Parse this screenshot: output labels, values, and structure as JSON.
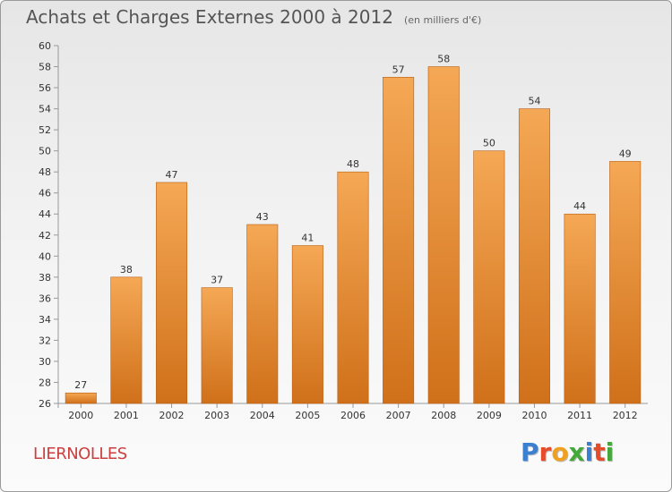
{
  "title": {
    "main": "Achats et Charges Externes 2000 à 2012",
    "sub": "(en milliers d'€)"
  },
  "place": "LIERNOLLES",
  "logo": {
    "letters": [
      "P",
      "r",
      "o",
      "x",
      "i",
      "t",
      "i"
    ],
    "colors": [
      "#3a7fd0",
      "#e64b2a",
      "#f0a020",
      "#44a83a",
      "#3a7fd0",
      "#e64b2a",
      "#44a83a"
    ]
  },
  "colors": {
    "bar_top": "#f5a855",
    "bar_bottom": "#d0701a",
    "bar_edge": "#b85e12"
  },
  "chart_data": {
    "type": "bar",
    "categories": [
      "2000",
      "2001",
      "2002",
      "2003",
      "2004",
      "2005",
      "2006",
      "2007",
      "2008",
      "2009",
      "2010",
      "2011",
      "2012"
    ],
    "values": [
      27,
      38,
      47,
      37,
      43,
      41,
      48,
      57,
      58,
      50,
      54,
      44,
      49
    ],
    "data_labels": [
      "27",
      "38",
      "47",
      "37",
      "43",
      "41",
      "48",
      "57",
      "58",
      "50",
      "54",
      "44",
      "49"
    ],
    "ylim": [
      26,
      60
    ],
    "yticks": [
      "26",
      "28",
      "30",
      "32",
      "34",
      "36",
      "38",
      "40",
      "42",
      "44",
      "46",
      "48",
      "50",
      "52",
      "54",
      "56",
      "58",
      "60"
    ],
    "grid": false,
    "xlabel": "",
    "ylabel": ""
  }
}
